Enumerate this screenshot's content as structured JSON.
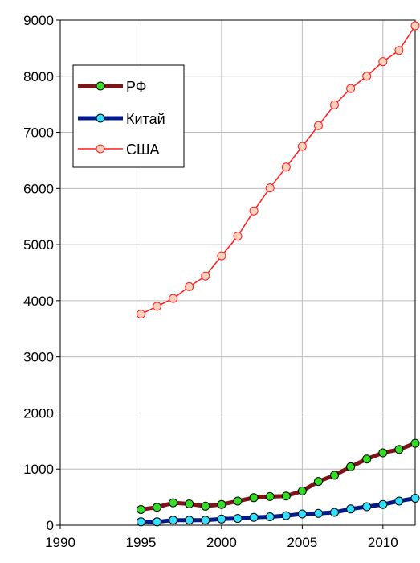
{
  "chart_data": {
    "type": "line",
    "title": "",
    "xlabel": "",
    "ylabel": "",
    "xlim": [
      1990,
      2012
    ],
    "ylim": [
      0,
      9000
    ],
    "x_ticks": [
      "1990",
      "1995",
      "2000",
      "2005",
      "2010"
    ],
    "y_ticks": [
      "0",
      "1000",
      "2000",
      "3000",
      "4000",
      "5000",
      "6000",
      "7000",
      "8000",
      "9000"
    ],
    "grid": true,
    "legend_position": "upper-left",
    "series": [
      {
        "name": "РФ",
        "line_color": "#7f1416",
        "marker_color": "#33dd22",
        "line_weight": "thick",
        "x": [
          1995,
          1996,
          1997,
          1998,
          1999,
          2000,
          2001,
          2002,
          2003,
          2004,
          2005,
          2006,
          2007,
          2008,
          2009,
          2010,
          2011,
          2012
        ],
        "values": [
          280,
          320,
          400,
          380,
          340,
          370,
          430,
          490,
          510,
          520,
          610,
          780,
          890,
          1040,
          1180,
          1290,
          1350,
          1460
        ]
      },
      {
        "name": "Китай",
        "line_color": "#001a8c",
        "marker_color": "#33e0ff",
        "line_weight": "thick",
        "x": [
          1995,
          1996,
          1997,
          1998,
          1999,
          2000,
          2001,
          2002,
          2003,
          2004,
          2005,
          2006,
          2007,
          2008,
          2009,
          2010,
          2011,
          2012
        ],
        "values": [
          60,
          60,
          90,
          90,
          90,
          110,
          120,
          140,
          150,
          170,
          200,
          210,
          230,
          290,
          330,
          370,
          430,
          480
        ]
      },
      {
        "name": "США",
        "line_color": "#ff1a1a",
        "marker_color": "#ffd2bf",
        "line_weight": "thin",
        "x": [
          1995,
          1996,
          1997,
          1998,
          1999,
          2000,
          2001,
          2002,
          2003,
          2004,
          2005,
          2006,
          2007,
          2008,
          2009,
          2010,
          2011,
          2012
        ],
        "values": [
          3760,
          3900,
          4040,
          4250,
          4440,
          4800,
          5150,
          5600,
          6010,
          6380,
          6750,
          7120,
          7490,
          7780,
          8000,
          8260,
          8460,
          8900
        ]
      }
    ]
  }
}
